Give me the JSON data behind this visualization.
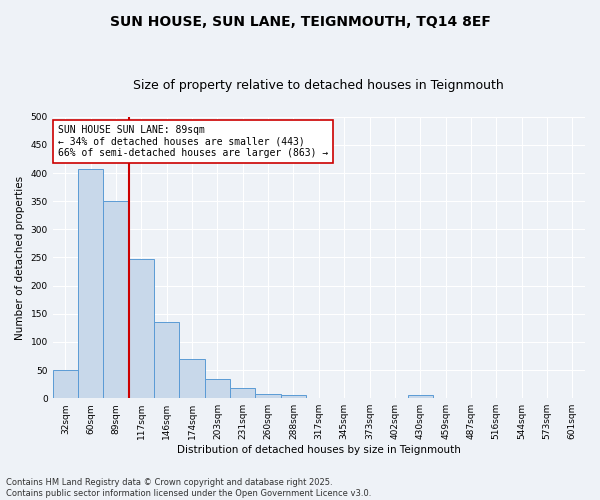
{
  "title": "SUN HOUSE, SUN LANE, TEIGNMOUTH, TQ14 8EF",
  "subtitle": "Size of property relative to detached houses in Teignmouth",
  "xlabel": "Distribution of detached houses by size in Teignmouth",
  "ylabel": "Number of detached properties",
  "bins": [
    "32sqm",
    "60sqm",
    "89sqm",
    "117sqm",
    "146sqm",
    "174sqm",
    "203sqm",
    "231sqm",
    "260sqm",
    "288sqm",
    "317sqm",
    "345sqm",
    "373sqm",
    "402sqm",
    "430sqm",
    "459sqm",
    "487sqm",
    "516sqm",
    "544sqm",
    "573sqm",
    "601sqm"
  ],
  "values": [
    50,
    407,
    350,
    247,
    135,
    70,
    35,
    18,
    8,
    5,
    0,
    0,
    0,
    0,
    5,
    0,
    0,
    0,
    0,
    0,
    0
  ],
  "bar_color": "#c8d8ea",
  "bar_edge_color": "#5b9bd5",
  "vline_x": 2.5,
  "vline_color": "#cc0000",
  "annotation_text": "SUN HOUSE SUN LANE: 89sqm\n← 34% of detached houses are smaller (443)\n66% of semi-detached houses are larger (863) →",
  "annotation_box_color": "#ffffff",
  "annotation_box_edge": "#cc0000",
  "ylim": [
    0,
    500
  ],
  "yticks": [
    0,
    50,
    100,
    150,
    200,
    250,
    300,
    350,
    400,
    450,
    500
  ],
  "bg_color": "#eef2f7",
  "grid_color": "#ffffff",
  "footer": "Contains HM Land Registry data © Crown copyright and database right 2025.\nContains public sector information licensed under the Open Government Licence v3.0.",
  "title_fontsize": 10,
  "subtitle_fontsize": 9,
  "axis_label_fontsize": 7.5,
  "tick_fontsize": 6.5,
  "annotation_fontsize": 7,
  "footer_fontsize": 6
}
